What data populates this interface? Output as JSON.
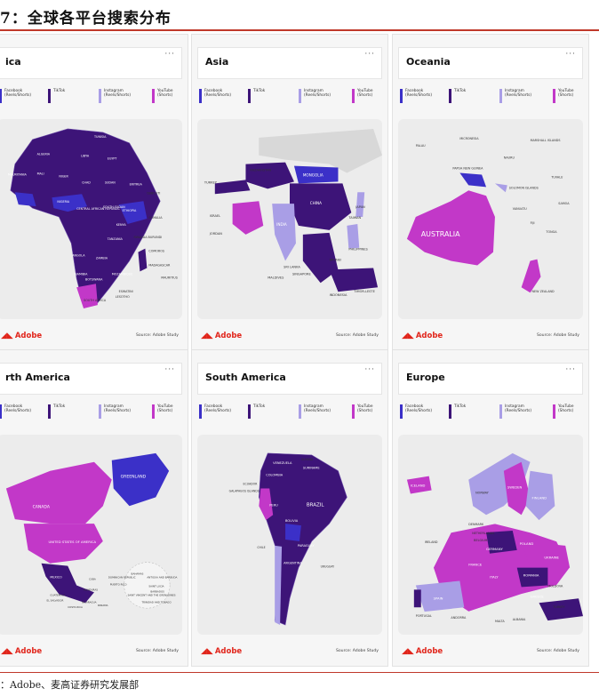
{
  "figure": {
    "title": "7：全球各平台搜索分布",
    "source": "：Adobe、麦高证券研究发展部"
  },
  "legend": [
    {
      "label": "Facebook\n(Reels/Shorts)",
      "color": "#3b30c8"
    },
    {
      "label": "TikTok",
      "color": "#3d1478"
    },
    {
      "label": "Instagram\n(Reels/Shorts)",
      "color": "#a99ee6"
    },
    {
      "label": "YouTube\n(Shorts)",
      "color": "#c238c8"
    }
  ],
  "panel_common": {
    "menu": "···",
    "brand": "Adobe",
    "source": "Source: Adobe Study"
  },
  "panels": [
    {
      "region": "ica",
      "labels": [
        "TUNISIA",
        "ALGERIA",
        "LIBYA",
        "EGYPT",
        "MAURITANIA",
        "MALI",
        "NIGER",
        "CHAD",
        "SUDAN",
        "ERITREA",
        "NIGERIA",
        "ETHIOPIA",
        "CENTRAL AFRICAN REPUBLIC",
        "SOUTH SUDAN",
        "KENYA",
        "TANZANIA",
        "ANGOLA",
        "ZAMBIA",
        "NAMIBIA",
        "BOTSWANA",
        "MOZAMBIQUE",
        "MADAGASCAR",
        "SOUTH AFRICA",
        "ESWATINI",
        "LESOTHO",
        "COMOROS",
        "MAURITIUS",
        "RWANDA BURUNDI",
        "DJIBOUTI",
        "SOMALIA"
      ]
    },
    {
      "region": "Asia",
      "labels": [
        "TURKEY",
        "KAZAKHSTAN",
        "MONGOLIA",
        "CHINA",
        "INDIA",
        "JAPAN",
        "TAIWAN",
        "PHILIPPINES",
        "SRI LANKA",
        "MALDIVES",
        "SINGAPORE",
        "INDONESIA",
        "TIMOR-LESTE",
        "BRUNEI",
        "JORDAN",
        "ISRAEL"
      ]
    },
    {
      "region": "Oceania",
      "labels": [
        "MICRONESIA",
        "MARSHALL ISLANDS",
        "PALAU",
        "NAURU",
        "PAPUA NEW GUINEA",
        "TUVALU",
        "SOLOMON ISLANDS",
        "SAMOA",
        "VANUATU",
        "FIJI",
        "TONGA",
        "AUSTRALIA",
        "NEW ZEALAND"
      ]
    },
    {
      "region": "rth America",
      "labels": [
        "GREENLAND",
        "CANADA",
        "UNITED STATES OF AMERICA",
        "MEXICO",
        "GUATEMALA",
        "EL SALVADOR",
        "COSTA RICA",
        "NICARAGUA",
        "HONDURAS",
        "PANAMA",
        "CUBA",
        "DOMINICAN REPUBLIC",
        "PUERTO RICO",
        "BAHAMAS",
        "ANTIGUA AND BARBUDA",
        "SAINT LUCIA",
        "BARBADOS",
        "SAINT VINCENT AND THE GRENADINES",
        "TRINIDAD AND TOBAGO"
      ]
    },
    {
      "region": "South America",
      "labels": [
        "VENEZUELA",
        "GUYANA",
        "SURINAME",
        "COLOMBIA",
        "ECUADOR",
        "GALAPAGOS ISLANDS",
        "PERU",
        "BRAZIL",
        "BOLIVIA",
        "PARAGUAY",
        "CHILE",
        "ARGENTINA",
        "URUGUAY"
      ]
    },
    {
      "region": "Europe",
      "labels": [
        "ICELAND",
        "NORWAY",
        "SWEDEN",
        "FINLAND",
        "DENMARK",
        "NETHERLANDS",
        "BELGIUM",
        "GERMANY",
        "POLAND",
        "IRELAND",
        "FRANCE",
        "UKRAINE",
        "ROMANIA",
        "MOLDOVA",
        "ITALY",
        "SPAIN",
        "PORTUGAL",
        "ANDORRA",
        "GREECE",
        "TURKEY",
        "MALTA",
        "ALBANIA"
      ]
    }
  ]
}
